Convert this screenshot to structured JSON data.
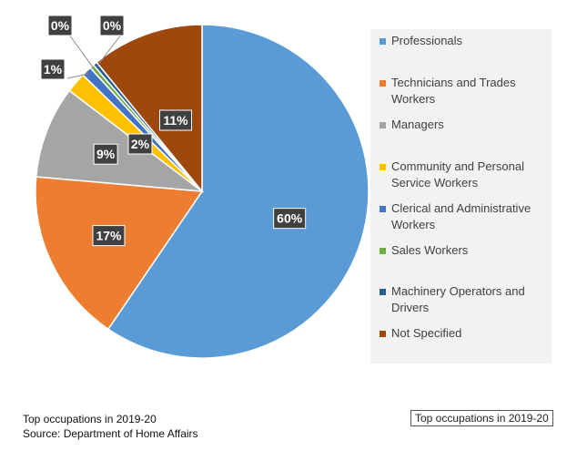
{
  "chart_data": {
    "type": "pie",
    "categories": [
      "Professionals",
      "Technicians and Trades Workers",
      "Managers",
      "Community and Personal Service Workers",
      "Clerical and Administrative Workers",
      "Sales Workers",
      "Machinery Operators and Drivers",
      "Not Specified"
    ],
    "values": [
      60,
      17,
      9,
      2,
      1,
      0,
      0,
      11
    ],
    "labels": [
      "60%",
      "17%",
      "9%",
      "2%",
      "1%",
      "0%",
      "0%",
      "11%"
    ],
    "colors": [
      "#5b9bd5",
      "#ed7d31",
      "#a5a5a5",
      "#ffc000",
      "#4472c4",
      "#70ad47",
      "#255e91",
      "#9e480e"
    ],
    "legend_position": "right"
  },
  "captions": {
    "line1": "Top occupations in 2019-20",
    "line2": "Source: Department of Home Affairs",
    "boxed": "Top occupations in 2019-20"
  }
}
